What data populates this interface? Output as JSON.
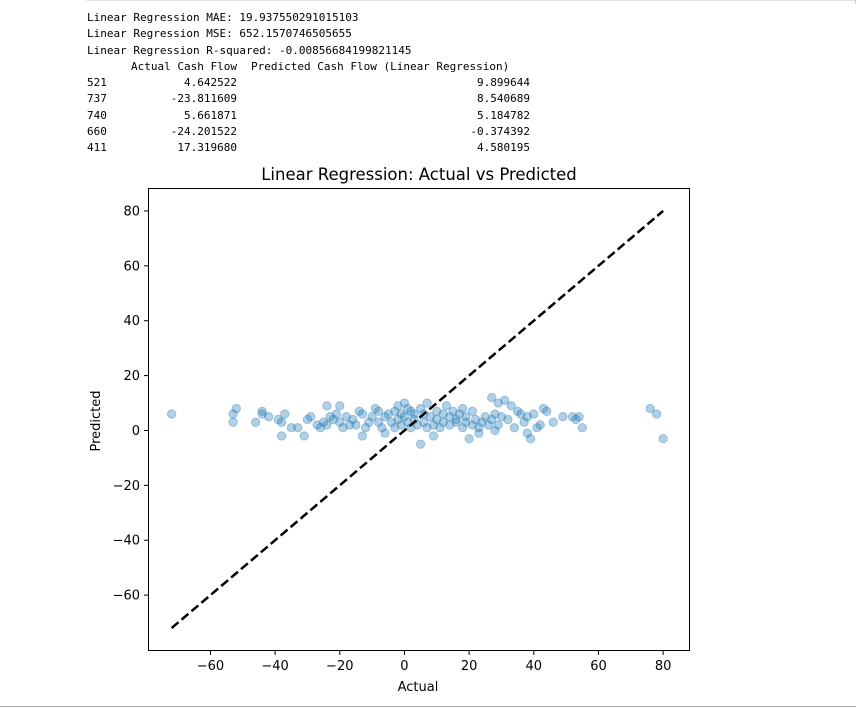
{
  "notebook_output": {
    "metrics": [
      "Linear Regression MAE: 19.937550291015103",
      "Linear Regression MSE: 652.1570746505655",
      "Linear Regression R-squared: -0.00856684199821145"
    ],
    "table": {
      "columns": [
        "Actual Cash Flow",
        "Predicted Cash Flow (Linear Regression)"
      ],
      "rows": [
        {
          "index": "521",
          "actual": "4.642522",
          "predicted": "9.899644"
        },
        {
          "index": "737",
          "actual": "-23.811609",
          "predicted": "8.540689"
        },
        {
          "index": "740",
          "actual": "5.661871",
          "predicted": "5.184782"
        },
        {
          "index": "660",
          "actual": "-24.201522",
          "predicted": "-0.374392"
        },
        {
          "index": "411",
          "actual": "17.319680",
          "predicted": "4.580195"
        }
      ]
    }
  },
  "chart_data": {
    "type": "scatter",
    "title": "Linear Regression: Actual vs Predicted",
    "xlabel": "Actual",
    "ylabel": "Predicted",
    "xlim": [
      -79,
      88
    ],
    "ylim": [
      -80,
      88
    ],
    "xticks": [
      -60,
      -40,
      -20,
      0,
      20,
      40,
      60,
      80
    ],
    "yticks": [
      -60,
      -40,
      -20,
      0,
      20,
      40,
      60,
      80
    ],
    "xtick_labels": [
      "−60",
      "−40",
      "−20",
      "0",
      "20",
      "40",
      "60",
      "80"
    ],
    "ytick_labels": [
      "−60",
      "−40",
      "−20",
      "0",
      "20",
      "40",
      "60",
      "80"
    ],
    "grid": false,
    "point_color": "#1f77b4",
    "point_alpha": 0.35,
    "reference_line": {
      "x": [
        -72,
        80
      ],
      "y": [
        -72,
        80
      ],
      "style": "dashed",
      "color": "#000000"
    },
    "points": [
      [
        -72,
        6
      ],
      [
        -53,
        6
      ],
      [
        -53,
        3
      ],
      [
        -52,
        8
      ],
      [
        -46,
        3
      ],
      [
        -44,
        7
      ],
      [
        -44,
        6
      ],
      [
        -42,
        5
      ],
      [
        -39,
        4
      ],
      [
        -38,
        -2
      ],
      [
        -38,
        3
      ],
      [
        -37,
        6
      ],
      [
        -35,
        1
      ],
      [
        -33,
        1
      ],
      [
        -31,
        -2
      ],
      [
        -30,
        4
      ],
      [
        -29,
        5
      ],
      [
        -27,
        2
      ],
      [
        -26,
        1
      ],
      [
        -25,
        3
      ],
      [
        -24,
        2
      ],
      [
        -24,
        9
      ],
      [
        -23,
        5
      ],
      [
        -22,
        4
      ],
      [
        -21,
        6
      ],
      [
        -20,
        3
      ],
      [
        -20,
        9
      ],
      [
        -19,
        1
      ],
      [
        -18,
        5
      ],
      [
        -17,
        2
      ],
      [
        -16,
        4
      ],
      [
        -15,
        2
      ],
      [
        -14,
        7
      ],
      [
        -13,
        6
      ],
      [
        -13,
        -2
      ],
      [
        -12,
        1
      ],
      [
        -11,
        3
      ],
      [
        -10,
        5
      ],
      [
        -9,
        8
      ],
      [
        -8,
        7
      ],
      [
        -8,
        3
      ],
      [
        -7,
        1
      ],
      [
        -6,
        5
      ],
      [
        -6,
        -1
      ],
      [
        -5,
        6
      ],
      [
        -4,
        3
      ],
      [
        -3,
        7
      ],
      [
        -3,
        1
      ],
      [
        -2,
        4
      ],
      [
        -2,
        9
      ],
      [
        -1,
        2
      ],
      [
        -1,
        6
      ],
      [
        0,
        5
      ],
      [
        0,
        10
      ],
      [
        1,
        3
      ],
      [
        1,
        8
      ],
      [
        2,
        7
      ],
      [
        2,
        1
      ],
      [
        3,
        4
      ],
      [
        3,
        6
      ],
      [
        4,
        2
      ],
      [
        5,
        8
      ],
      [
        5,
        -5
      ],
      [
        6,
        6
      ],
      [
        6,
        3
      ],
      [
        7,
        1
      ],
      [
        7,
        10
      ],
      [
        8,
        5
      ],
      [
        9,
        2
      ],
      [
        9,
        -2
      ],
      [
        10,
        4
      ],
      [
        10,
        7
      ],
      [
        11,
        1
      ],
      [
        12,
        6
      ],
      [
        12,
        3
      ],
      [
        13,
        9
      ],
      [
        14,
        2
      ],
      [
        14,
        5
      ],
      [
        15,
        7
      ],
      [
        16,
        3
      ],
      [
        16,
        4
      ],
      [
        17,
        6
      ],
      [
        18,
        1
      ],
      [
        18,
        8
      ],
      [
        19,
        3
      ],
      [
        19,
        5
      ],
      [
        20,
        -3
      ],
      [
        21,
        2
      ],
      [
        21,
        7
      ],
      [
        22,
        4
      ],
      [
        23,
        1
      ],
      [
        23,
        -1
      ],
      [
        24,
        3
      ],
      [
        25,
        5
      ],
      [
        26,
        2
      ],
      [
        27,
        12
      ],
      [
        27,
        4
      ],
      [
        28,
        6
      ],
      [
        28,
        0
      ],
      [
        29,
        10
      ],
      [
        29,
        2
      ],
      [
        30,
        5
      ],
      [
        31,
        11
      ],
      [
        32,
        4
      ],
      [
        33,
        9
      ],
      [
        34,
        1
      ],
      [
        35,
        7
      ],
      [
        36,
        6
      ],
      [
        37,
        3
      ],
      [
        38,
        -1
      ],
      [
        38,
        5
      ],
      [
        39,
        -3
      ],
      [
        40,
        6
      ],
      [
        41,
        1
      ],
      [
        42,
        2
      ],
      [
        43,
        8
      ],
      [
        44,
        7
      ],
      [
        46,
        3
      ],
      [
        49,
        5
      ],
      [
        52,
        5
      ],
      [
        53,
        4
      ],
      [
        54,
        5
      ],
      [
        55,
        1
      ],
      [
        76,
        8
      ],
      [
        78,
        6
      ],
      [
        80,
        -3
      ]
    ]
  }
}
